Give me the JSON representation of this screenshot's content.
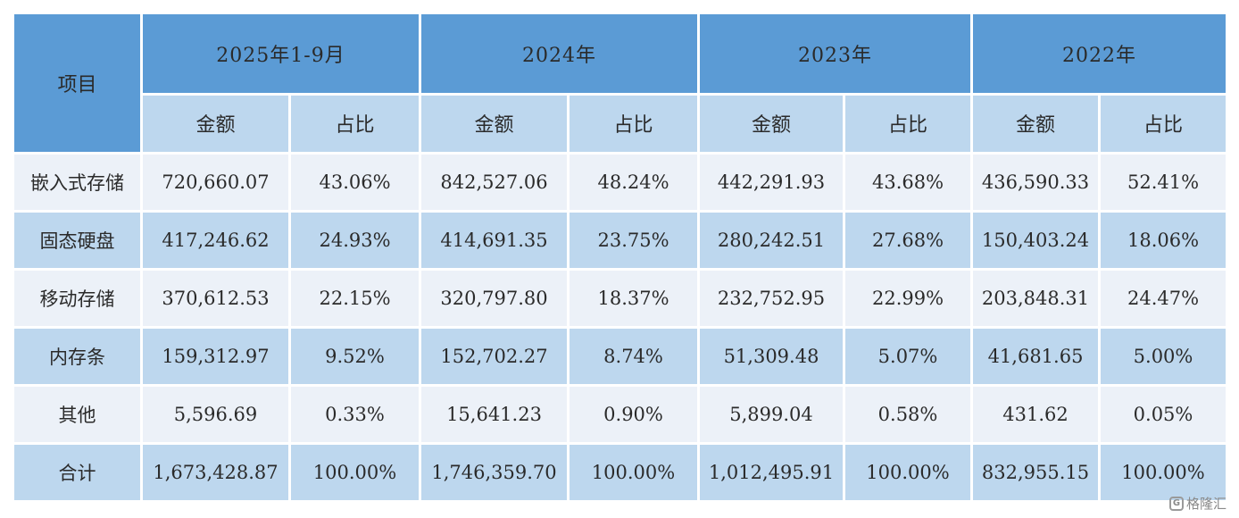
{
  "table": {
    "corner_header": "项目",
    "years": [
      "2025年1-9月",
      "2024年",
      "2023年",
      "2022年"
    ],
    "sub_headers": [
      "金额",
      "占比"
    ],
    "rows": [
      {
        "item": "嵌入式存储",
        "cells": [
          "720,660.07",
          "43.06%",
          "842,527.06",
          "48.24%",
          "442,291.93",
          "43.68%",
          "436,590.33",
          "52.41%"
        ]
      },
      {
        "item": "固态硬盘",
        "cells": [
          "417,246.62",
          "24.93%",
          "414,691.35",
          "23.75%",
          "280,242.51",
          "27.68%",
          "150,403.24",
          "18.06%"
        ]
      },
      {
        "item": "移动存储",
        "cells": [
          "370,612.53",
          "22.15%",
          "320,797.80",
          "18.37%",
          "232,752.95",
          "22.99%",
          "203,848.31",
          "24.47%"
        ]
      },
      {
        "item": "内存条",
        "cells": [
          "159,312.97",
          "9.52%",
          "152,702.27",
          "8.74%",
          "51,309.48",
          "5.07%",
          "41,681.65",
          "5.00%"
        ]
      },
      {
        "item": "其他",
        "cells": [
          "5,596.69",
          "0.33%",
          "15,641.23",
          "0.90%",
          "5,899.04",
          "0.58%",
          "431.62",
          "0.05%"
        ]
      },
      {
        "item": "合计",
        "cells": [
          "1,673,428.87",
          "100.00%",
          "1,746,359.70",
          "100.00%",
          "1,012,495.91",
          "100.00%",
          "832,955.15",
          "100.00%"
        ]
      }
    ]
  },
  "watermark": {
    "logo": "G",
    "text": "格隆汇"
  },
  "colors": {
    "header_dark": "#5b9bd5",
    "header_light": "#bdd7ee",
    "row_light": "#ecf1f8"
  }
}
